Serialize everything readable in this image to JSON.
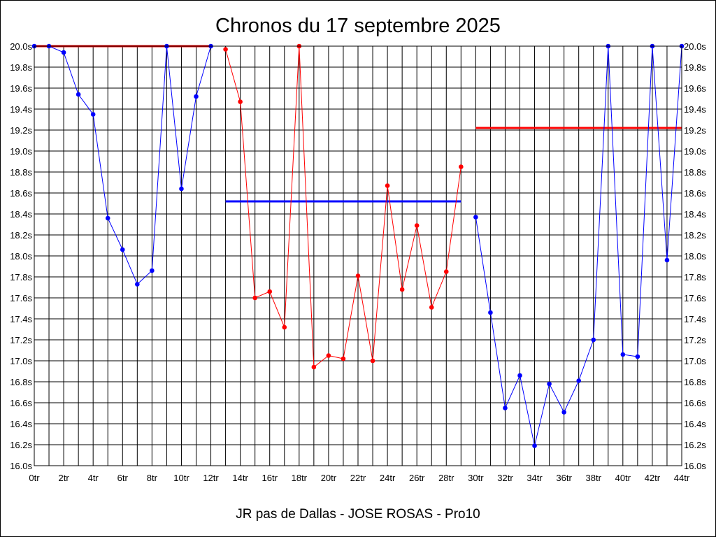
{
  "chart_data": {
    "type": "line",
    "title": "Chronos du 17 septembre 2025",
    "subtitle": "JR pas de Dallas - JOSE ROSAS - Pro10",
    "xlabel": "",
    "ylabel": "",
    "xlim": [
      0,
      44
    ],
    "ylim": [
      16.0,
      20.0
    ],
    "x_ticks": [
      "0tr",
      "2tr",
      "4tr",
      "6tr",
      "8tr",
      "10tr",
      "12tr",
      "14tr",
      "16tr",
      "18tr",
      "20tr",
      "22tr",
      "24tr",
      "26tr",
      "28tr",
      "30tr",
      "32tr",
      "34tr",
      "36tr",
      "38tr",
      "40tr",
      "42tr",
      "44tr"
    ],
    "y_ticks": [
      "16.0s",
      "16.2s",
      "16.4s",
      "16.6s",
      "16.8s",
      "17.0s",
      "17.2s",
      "17.4s",
      "17.6s",
      "17.8s",
      "18.0s",
      "18.2s",
      "18.4s",
      "18.6s",
      "18.8s",
      "19.0s",
      "19.2s",
      "19.4s",
      "19.6s",
      "19.8s",
      "20.0s"
    ],
    "grid": true,
    "series": [
      {
        "color": "#0000ff",
        "x": [
          0,
          1,
          2,
          3,
          4,
          5,
          6,
          7,
          8,
          9,
          10,
          11,
          12
        ],
        "values": [
          20.0,
          20.0,
          19.94,
          19.54,
          19.35,
          18.36,
          18.06,
          17.73,
          17.86,
          20.0,
          18.64,
          19.52,
          20.0
        ]
      },
      {
        "color": "#ff0000",
        "x": [
          13,
          14,
          15,
          16,
          17,
          18,
          19,
          20,
          21,
          22,
          23,
          24,
          25,
          26,
          27,
          28,
          29
        ],
        "values": [
          19.97,
          19.47,
          17.6,
          17.66,
          17.32,
          20.0,
          16.94,
          17.05,
          17.02,
          17.81,
          17.0,
          18.67,
          17.68,
          18.29,
          17.51,
          17.85,
          18.85
        ]
      },
      {
        "color": "#0000ff",
        "x": [
          30,
          31,
          32,
          33,
          34,
          35,
          36,
          37,
          38,
          39,
          40,
          41,
          42,
          43,
          44
        ],
        "values": [
          18.37,
          17.46,
          16.55,
          16.86,
          16.19,
          16.78,
          16.51,
          16.81,
          17.2,
          20.0,
          17.06,
          17.04,
          20.0,
          17.96,
          20.0
        ]
      }
    ],
    "reference_lines": [
      {
        "color": "#ff0000",
        "x": [
          0,
          12
        ],
        "value": 20.0
      },
      {
        "color": "#0000ff",
        "x": [
          13,
          29
        ],
        "value": 18.52
      },
      {
        "color": "#ff0000",
        "x": [
          30,
          44
        ],
        "value": 19.22
      }
    ]
  }
}
